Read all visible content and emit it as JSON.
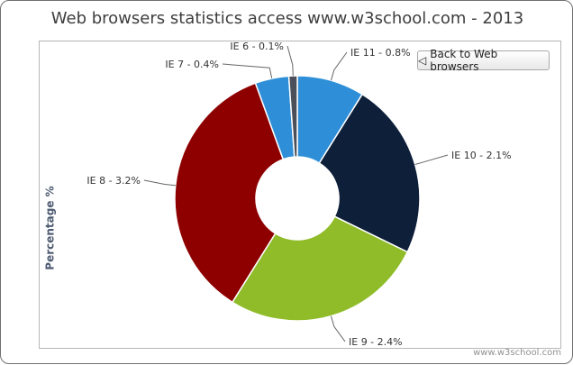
{
  "chart_data": {
    "type": "pie",
    "title": "Web browsers statistics access www.w3school.com - 2013",
    "ylabel": "Percentage %",
    "slices": [
      {
        "label": "IE 11 - 0.8%",
        "name": "IE 11",
        "value": 0.8,
        "color": "#2e8fd8"
      },
      {
        "label": "IE 10 - 2.1%",
        "name": "IE 10",
        "value": 2.1,
        "color": "#0e1f3a"
      },
      {
        "label": "IE 9 - 2.4%",
        "name": "IE 9",
        "value": 2.4,
        "color": "#8fbc28"
      },
      {
        "label": "IE 8 - 3.2%",
        "name": "IE 8",
        "value": 3.2,
        "color": "#8e0000"
      },
      {
        "label": "IE 7 - 0.4%",
        "name": "IE 7",
        "value": 0.4,
        "color": "#2e8fd8"
      },
      {
        "label": "IE 6 - 0.1%",
        "name": "IE 6",
        "value": 0.1,
        "color": "#4a4f59"
      }
    ]
  },
  "controls": {
    "back_label": "Back to Web browsers",
    "back_icon": "triangle-left-icon"
  },
  "credit": "www.w3school.com"
}
